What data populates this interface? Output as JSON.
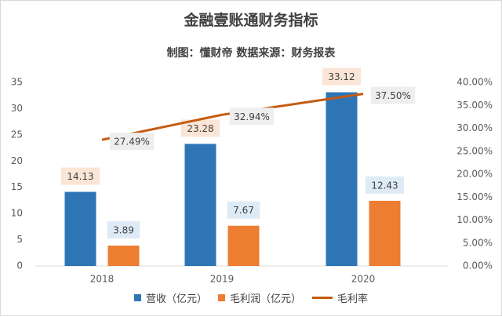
{
  "header": {
    "title": "金融壹账通财务指标",
    "subtitle": "制图：懂财帝  数据来源：财务报表"
  },
  "chart_data": {
    "type": "bar",
    "categories": [
      "2018",
      "2019",
      "2020"
    ],
    "series": [
      {
        "name": "营收（亿元）",
        "type": "bar",
        "axis": "left",
        "values": [
          14.13,
          23.28,
          33.12
        ],
        "color": "#2e75b6",
        "label_bg": "#fbe5d6"
      },
      {
        "name": "毛利润（亿元）",
        "type": "bar",
        "axis": "left",
        "values": [
          3.89,
          7.67,
          12.43
        ],
        "color": "#ed7d31",
        "label_bg": "#deebf7"
      },
      {
        "name": "毛利率",
        "type": "line",
        "axis": "right",
        "values": [
          27.49,
          32.94,
          37.5
        ],
        "color": "#c55a11",
        "label_bg": "#eeeeee"
      }
    ],
    "value_labels": {
      "revenue": [
        "14.13",
        "23.28",
        "33.12"
      ],
      "gross_profit": [
        "3.89",
        "7.67",
        "12.43"
      ],
      "margin": [
        "27.49%",
        "32.94%",
        "37.50%"
      ]
    },
    "ylim_left": [
      0,
      35
    ],
    "yticks_left": [
      "0",
      "5",
      "10",
      "15",
      "20",
      "25",
      "30",
      "35"
    ],
    "ylim_right": [
      0,
      40
    ],
    "yticks_right": [
      "0.00%",
      "5.00%",
      "10.00%",
      "15.00%",
      "20.00%",
      "25.00%",
      "30.00%",
      "35.00%",
      "40.00%"
    ],
    "grid": false,
    "legend_position": "bottom"
  }
}
